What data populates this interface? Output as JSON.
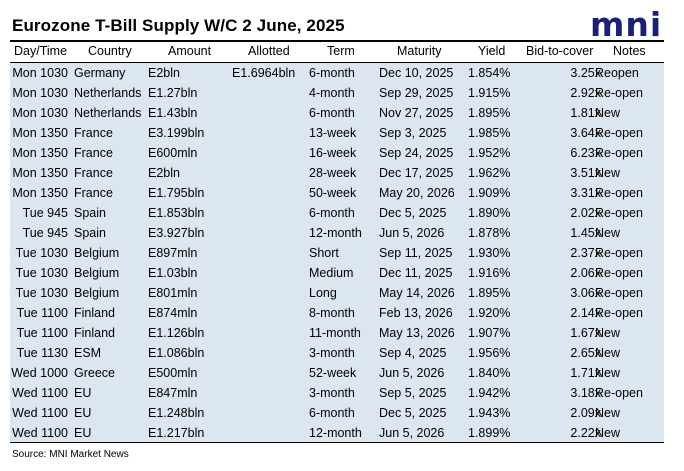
{
  "title": "Eurozone T-Bill Supply W/C 2 June, 2025",
  "logo_text": "mni",
  "brand_color": "#1a1f7a",
  "table_bg_color": "#dce6f1",
  "columns": [
    "Day/Time",
    "Country",
    "Amount",
    "Allotted",
    "Term",
    "Maturity",
    "Yield",
    "Bid-to-cover",
    "Notes"
  ],
  "rows": [
    {
      "day": "Mon 1030",
      "country": "Germany",
      "amount": "E2bln",
      "allotted": "E1.6964bln",
      "term": "6-month",
      "maturity": "Dec 10, 2025",
      "yield": "1.854%",
      "btc": "3.25x",
      "notes": "Reopen"
    },
    {
      "day": "Mon 1030",
      "country": "Netherlands",
      "amount": "E1.27bln",
      "allotted": "",
      "term": "4-month",
      "maturity": "Sep 29, 2025",
      "yield": "1.915%",
      "btc": "2.92x",
      "notes": "Re-open"
    },
    {
      "day": "Mon 1030",
      "country": "Netherlands",
      "amount": "E1.43bln",
      "allotted": "",
      "term": "6-month",
      "maturity": "Nov 27, 2025",
      "yield": "1.895%",
      "btc": "1.81x",
      "notes": "New"
    },
    {
      "day": "Mon 1350",
      "country": "France",
      "amount": "E3.199bln",
      "allotted": "",
      "term": "13-week",
      "maturity": "Sep 3, 2025",
      "yield": "1.985%",
      "btc": "3.64x",
      "notes": "Re-open"
    },
    {
      "day": "Mon 1350",
      "country": "France",
      "amount": "E600mln",
      "allotted": "",
      "term": "16-week",
      "maturity": "Sep 24, 2025",
      "yield": "1.952%",
      "btc": "6.23x",
      "notes": "Re-open"
    },
    {
      "day": "Mon 1350",
      "country": "France",
      "amount": "E2bln",
      "allotted": "",
      "term": "28-week",
      "maturity": "Dec 17, 2025",
      "yield": "1.962%",
      "btc": "3.51x",
      "notes": "New"
    },
    {
      "day": "Mon 1350",
      "country": "France",
      "amount": "E1.795bln",
      "allotted": "",
      "term": "50-week",
      "maturity": "May 20, 2026",
      "yield": "1.909%",
      "btc": "3.31x",
      "notes": "Re-open"
    },
    {
      "day": "Tue 945",
      "country": "Spain",
      "amount": "E1.853bln",
      "allotted": "",
      "term": "6-month",
      "maturity": "Dec 5, 2025",
      "yield": "1.890%",
      "btc": "2.02x",
      "notes": "Re-open"
    },
    {
      "day": "Tue 945",
      "country": "Spain",
      "amount": "E3.927bln",
      "allotted": "",
      "term": "12-month",
      "maturity": "Jun 5, 2026",
      "yield": "1.878%",
      "btc": "1.45x",
      "notes": "New"
    },
    {
      "day": "Tue 1030",
      "country": "Belgium",
      "amount": "E897mln",
      "allotted": "",
      "term": "Short",
      "maturity": "Sep 11, 2025",
      "yield": "1.930%",
      "btc": "2.37x",
      "notes": "Re-open"
    },
    {
      "day": "Tue 1030",
      "country": "Belgium",
      "amount": "E1.03bln",
      "allotted": "",
      "term": "Medium",
      "maturity": "Dec 11, 2025",
      "yield": "1.916%",
      "btc": "2.06x",
      "notes": "Re-open"
    },
    {
      "day": "Tue 1030",
      "country": "Belgium",
      "amount": "E801mln",
      "allotted": "",
      "term": "Long",
      "maturity": "May 14, 2026",
      "yield": "1.895%",
      "btc": "3.06x",
      "notes": "Re-open"
    },
    {
      "day": "Tue 1100",
      "country": "Finland",
      "amount": "E874mln",
      "allotted": "",
      "term": "8-month",
      "maturity": "Feb 13, 2026",
      "yield": "1.920%",
      "btc": "2.14x",
      "notes": "Re-open"
    },
    {
      "day": "Tue 1100",
      "country": "Finland",
      "amount": "E1.126bln",
      "allotted": "",
      "term": "11-month",
      "maturity": "May 13, 2026",
      "yield": "1.907%",
      "btc": "1.67x",
      "notes": "New"
    },
    {
      "day": "Tue 1130",
      "country": "ESM",
      "amount": "E1.086bln",
      "allotted": "",
      "term": "3-month",
      "maturity": "Sep 4, 2025",
      "yield": "1.956%",
      "btc": "2.65x",
      "notes": "New"
    },
    {
      "day": "Wed 1000",
      "country": "Greece",
      "amount": "E500mln",
      "allotted": "",
      "term": "52-week",
      "maturity": "Jun 5, 2026",
      "yield": "1.840%",
      "btc": "1.71x",
      "notes": "New"
    },
    {
      "day": "Wed 1100",
      "country": "EU",
      "amount": "E847mln",
      "allotted": "",
      "term": "3-month",
      "maturity": "Sep 5, 2025",
      "yield": "1.942%",
      "btc": "3.18x",
      "notes": "Re-open"
    },
    {
      "day": "Wed 1100",
      "country": "EU",
      "amount": "E1.248bln",
      "allotted": "",
      "term": "6-month",
      "maturity": "Dec 5, 2025",
      "yield": "1.943%",
      "btc": "2.09x",
      "notes": "New"
    },
    {
      "day": "Wed 1100",
      "country": "EU",
      "amount": "E1.217bln",
      "allotted": "",
      "term": "12-month",
      "maturity": "Jun 5, 2026",
      "yield": "1.899%",
      "btc": "2.22x",
      "notes": "New"
    }
  ],
  "source": "Source: MNI Market News"
}
